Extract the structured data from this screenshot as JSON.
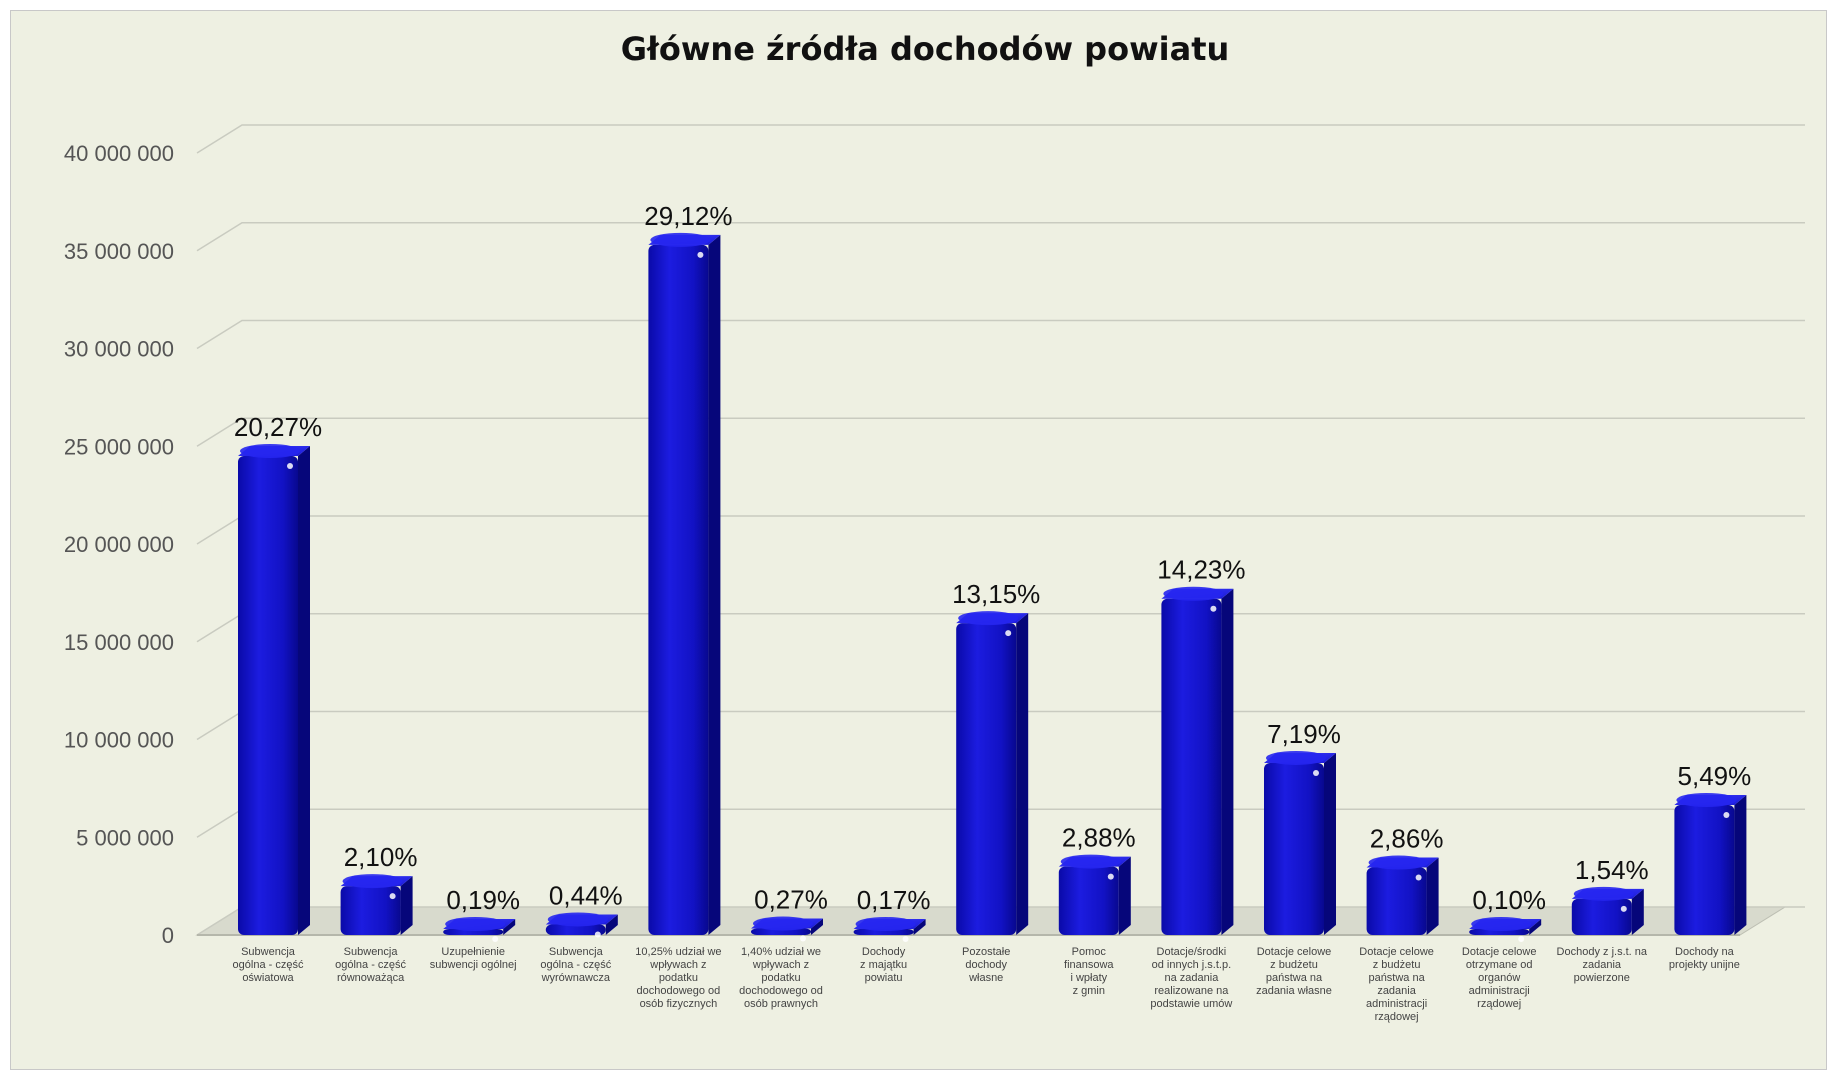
{
  "chart_data": {
    "type": "bar",
    "title": "Główne źródła dochodów powiatu",
    "xlabel": "",
    "ylabel": "",
    "ylim": [
      0,
      40000000
    ],
    "yticks": [
      "0",
      "5 000 000",
      "10 000 000",
      "15 000 000",
      "20 000 000",
      "25 000 000",
      "30 000 000",
      "35 000 000",
      "40 000 000"
    ],
    "grid": true,
    "legend": "none",
    "colors": {
      "bar": "#1010c8",
      "bar_side": "#06066e",
      "bar_top": "#3a3aff",
      "background": "#eef0e2",
      "grid": "#c9cbc0"
    },
    "categories": [
      [
        "Subwencja",
        "ogólna - część",
        "oświatowa"
      ],
      [
        "Subwencja",
        "ogólna - część",
        "równoważąca"
      ],
      [
        "Uzupełnienie",
        "subwencji ogólnej"
      ],
      [
        "Subwencja",
        "ogólna - część",
        "wyrównawcza"
      ],
      [
        "10,25% udział we",
        "wpływach z",
        "podatku",
        "dochodowego od",
        "osób fizycznych"
      ],
      [
        "1,40% udział we",
        "wpływach z",
        "podatku",
        "dochodowego od",
        "osób prawnych"
      ],
      [
        "Dochody",
        "z majątku",
        "powiatu"
      ],
      [
        "Pozostałe",
        "dochody",
        "własne"
      ],
      [
        "Pomoc",
        "finansowa",
        "i wpłaty",
        "z gmin"
      ],
      [
        "Dotacje/środki",
        "od innych j.s.t.p.",
        "na zadania",
        "realizowane na",
        "podstawie umów"
      ],
      [
        "Dotacje celowe",
        "z budżetu",
        "państwa na",
        "zadania własne"
      ],
      [
        "Dotacje celowe",
        "z budżetu",
        "państwa na",
        "zadania",
        "administracji",
        "rządowej"
      ],
      [
        "Dotacje celowe",
        "otrzymane od",
        "organów",
        "administracji",
        "rządowej"
      ],
      [
        "Dochody z j.s.t. na",
        "zadania",
        "powierzone"
      ],
      [
        "Dochody na",
        "projekty unijne"
      ]
    ],
    "values": [
      24500000,
      2500000,
      230000,
      540000,
      35300000,
      330000,
      210000,
      15950000,
      3500000,
      17200000,
      8800000,
      3450000,
      120000,
      1850000,
      6650000
    ],
    "labels": [
      "20,27%",
      "2,10%",
      "0,19%",
      "0,44%",
      "29,12%",
      "0,27%",
      "0,17%",
      "13,15%",
      "2,88%",
      "14,23%",
      "7,19%",
      "2,86%",
      "0,10%",
      "1,54%",
      "5,49%"
    ]
  }
}
